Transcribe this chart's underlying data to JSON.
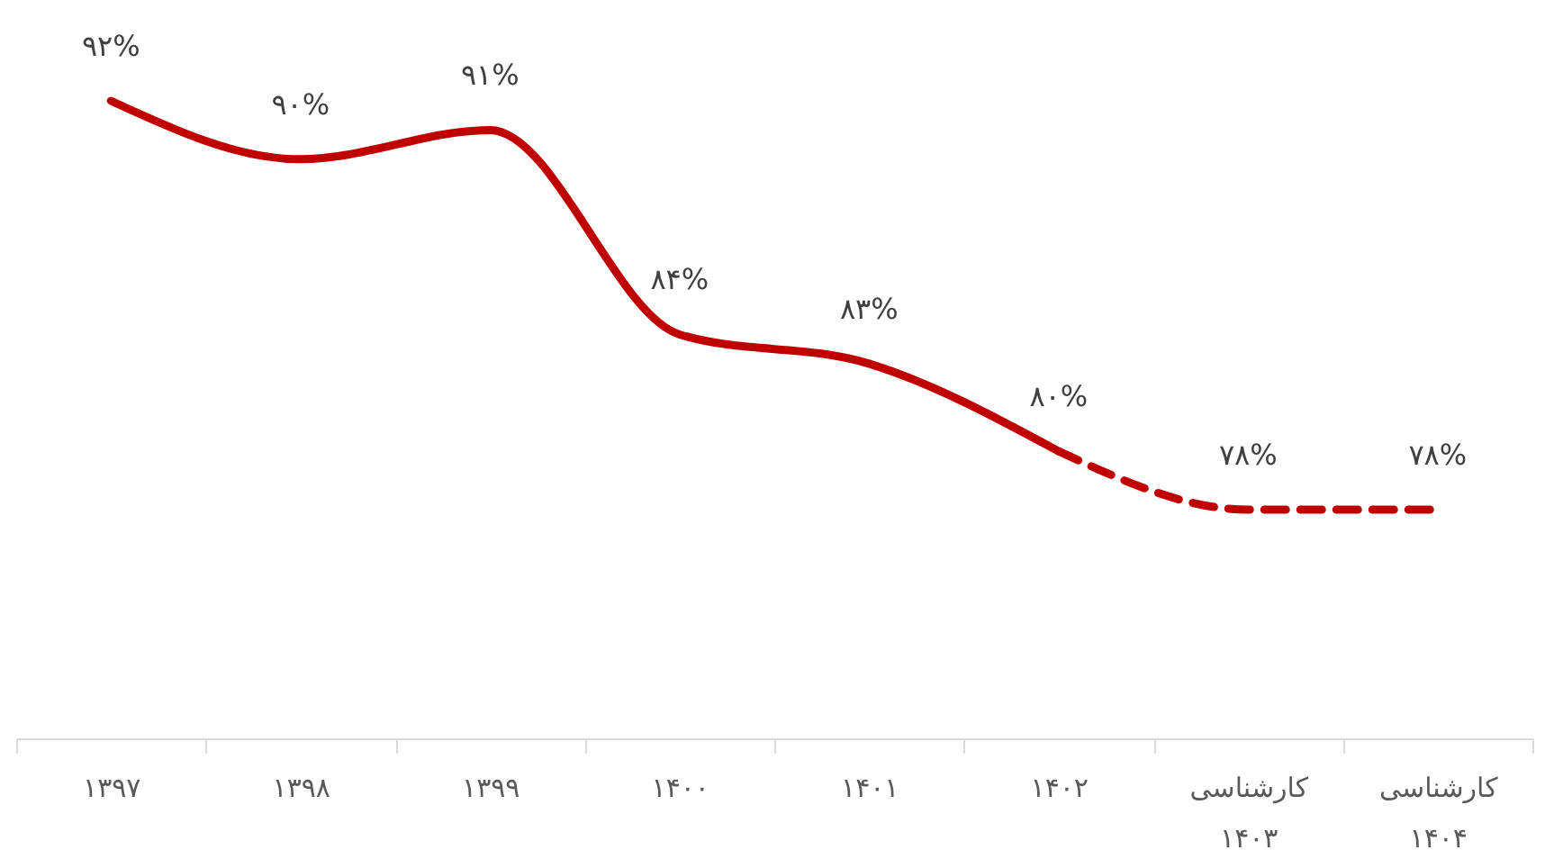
{
  "chart_data": {
    "type": "line",
    "categories": [
      "۱۳۹۷",
      "۱۳۹۸",
      "۱۳۹۹",
      "۱۴۰۰",
      "۱۴۰۱",
      "۱۴۰۲",
      "کارشناسی ۱۴۰۳",
      "کارشناسی ۱۴۰۴"
    ],
    "series": [
      {
        "color": "#c00000",
        "line_style": "solid",
        "values": [
          92,
          90,
          91,
          84,
          83,
          80,
          null,
          null
        ],
        "value_labels": [
          "۹۲%",
          "۹۰%",
          "۹۱%",
          "۸۴%",
          "۸۳%",
          "۸۰%",
          null,
          null
        ]
      },
      {
        "color": "#c00000",
        "line_style": "dashed",
        "values": [
          null,
          null,
          null,
          null,
          null,
          80,
          78,
          78
        ],
        "value_labels": [
          null,
          null,
          null,
          null,
          null,
          null,
          "۷۸%",
          "۷۸%"
        ]
      }
    ],
    "grid": false,
    "tick_labels": "x"
  }
}
